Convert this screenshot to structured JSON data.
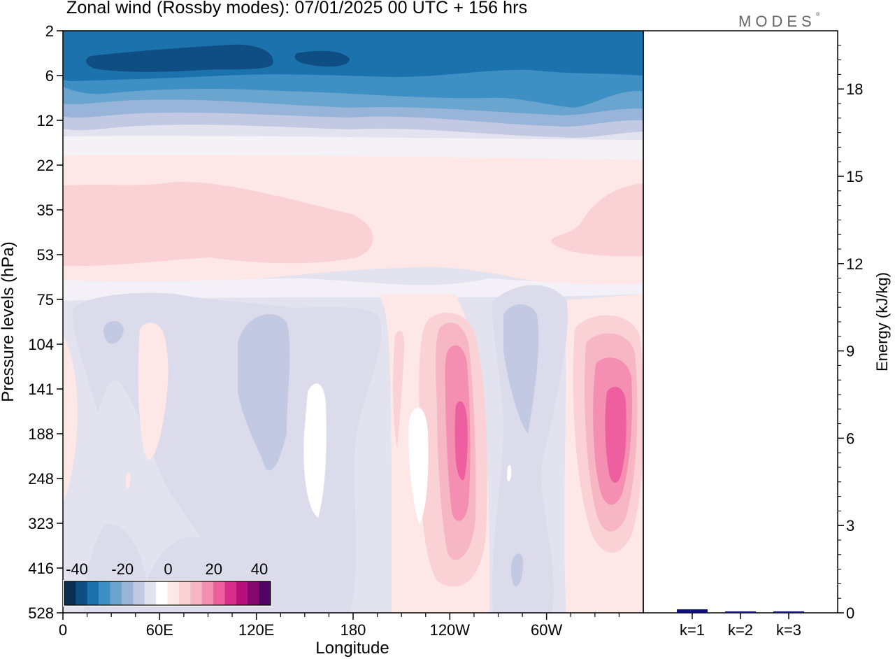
{
  "chart_data": [
    {
      "type": "heatmap",
      "title": "Zonal wind (Rossby modes):  07/01/2025  00 UTC  + 156 hrs",
      "xlabel": "Longitude",
      "ylabel": "Pressure levels (hPa)",
      "x_ticks": [
        "0",
        "60E",
        "120E",
        "180",
        "120W",
        "60W"
      ],
      "x_tick_degrees": [
        0,
        60,
        120,
        180,
        240,
        300
      ],
      "xlim": [
        0,
        360
      ],
      "y_ticks": [
        "2",
        "6",
        "12",
        "22",
        "35",
        "53",
        "75",
        "104",
        "141",
        "188",
        "248",
        "323",
        "416",
        "528"
      ],
      "colorbar": {
        "tick_labels": [
          "-40",
          "-20",
          "0",
          "20",
          "40"
        ],
        "colors": [
          "#0b2f52",
          "#0e4e82",
          "#1b72ad",
          "#3d8fc4",
          "#6aa5cf",
          "#98b4d9",
          "#c3c9e3",
          "#e3e2ef",
          "#ffffff",
          "#fde7e7",
          "#fad2d6",
          "#f7b6c4",
          "#f48fb1",
          "#ee5fa0",
          "#db2e8c",
          "#b50f7b",
          "#86076f",
          "#4f0563"
        ]
      }
    },
    {
      "type": "bar",
      "ylabel": "Energy (kJ/kg)",
      "categories": [
        "k=1",
        "k=2",
        "k=3"
      ],
      "values": [
        0.12,
        0.05,
        0.05
      ],
      "y_ticks": [
        "0",
        "3",
        "6",
        "9",
        "12",
        "15",
        "18"
      ],
      "ylim": [
        0,
        20
      ],
      "bar_color": "#101080"
    }
  ],
  "logo": {
    "text": "MODES",
    "mark": "®"
  }
}
